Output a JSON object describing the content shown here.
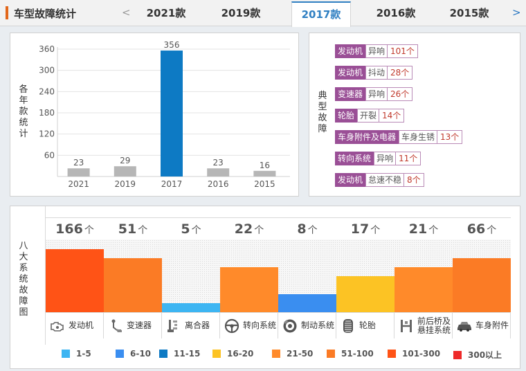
{
  "header": {
    "title": "车型故障统计",
    "prev_label": "<",
    "next_label": ">",
    "tabs": [
      {
        "label": "2021款",
        "active": false
      },
      {
        "label": "2019款",
        "active": false
      },
      {
        "label": "2017款",
        "active": true
      },
      {
        "label": "2016款",
        "active": false
      },
      {
        "label": "2015款",
        "active": false
      }
    ]
  },
  "year_stats": {
    "side_label": "各年款统计",
    "chart_data": {
      "type": "bar",
      "categories": [
        "2021",
        "2019",
        "2017",
        "2016",
        "2015"
      ],
      "values": [
        23,
        29,
        356,
        23,
        16
      ],
      "highlight_index": 2,
      "ylim": [
        0,
        360
      ],
      "yticks": [
        60,
        120,
        180,
        240,
        300,
        360
      ],
      "grid": true,
      "colors": {
        "default": "#b6b6b6",
        "highlight": "#0d7ac4"
      }
    }
  },
  "typical_faults": {
    "side_label": "典型故障",
    "items": [
      {
        "part": "发动机",
        "type": "异响",
        "count": "101个"
      },
      {
        "part": "发动机",
        "type": "抖动",
        "count": "28个"
      },
      {
        "part": "变速器",
        "type": "异响",
        "count": "26个"
      },
      {
        "part": "轮胎",
        "type": "开裂",
        "count": "14个"
      },
      {
        "part": "车身附件及电器",
        "type": "车身生锈",
        "count": "13个"
      },
      {
        "part": "转向系统",
        "type": "异响",
        "count": "11个"
      },
      {
        "part": "发动机",
        "type": "怠速不稳",
        "count": "8个"
      }
    ]
  },
  "systems": {
    "side_label": "八大系统故障图",
    "unit": "个",
    "items": [
      {
        "name": "发动机",
        "count": 166,
        "fraction": 0.87,
        "color": "#ff5316",
        "icon": "engine-icon"
      },
      {
        "name": "变速器",
        "count": 51,
        "fraction": 0.74,
        "color": "#fb7b25",
        "icon": "gearshift-icon"
      },
      {
        "name": "离合器",
        "count": 5,
        "fraction": 0.12,
        "color": "#3db5f2",
        "icon": "clutch-pedal-icon"
      },
      {
        "name": "转向系统",
        "count": 22,
        "fraction": 0.62,
        "color": "#ff8a2a",
        "icon": "steering-wheel-icon"
      },
      {
        "name": "制动系统",
        "count": 8,
        "fraction": 0.25,
        "color": "#3a8ef0",
        "icon": "brake-disc-icon"
      },
      {
        "name": "轮胎",
        "count": 17,
        "fraction": 0.5,
        "color": "#fcc324",
        "icon": "tire-icon"
      },
      {
        "name": "前后桥及悬挂系统",
        "count": 21,
        "fraction": 0.62,
        "color": "#ff8a2a",
        "icon": "suspension-icon"
      },
      {
        "name": "车身附件",
        "count": 66,
        "fraction": 0.74,
        "color": "#fb7b25",
        "icon": "car-body-icon"
      }
    ]
  },
  "legend": [
    {
      "label": "1-5",
      "color": "#3db5f2"
    },
    {
      "label": "6-10",
      "color": "#3a8ef0"
    },
    {
      "label": "11-15",
      "color": "#0d7ac4"
    },
    {
      "label": "16-20",
      "color": "#fcc324"
    },
    {
      "label": "21-50",
      "color": "#ff8a2a"
    },
    {
      "label": "51-100",
      "color": "#fb7b25"
    },
    {
      "label": "101-300",
      "color": "#ff5316"
    },
    {
      "label": "300以上",
      "color": "#ee2a2a"
    }
  ]
}
